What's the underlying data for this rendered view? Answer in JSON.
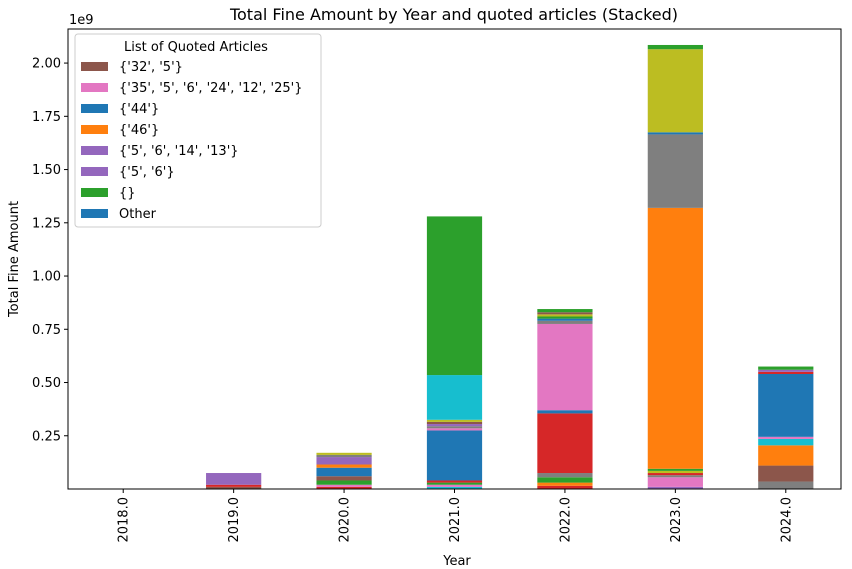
{
  "chart_data": {
    "type": "bar",
    "stacked": true,
    "title": "Total Fine Amount by Year and quoted articles (Stacked)",
    "xlabel": "Year",
    "ylabel": "Total Fine Amount",
    "y_scale_label": "1e9",
    "ylim": [
      0,
      2.16
    ],
    "y_ticks": [
      0.25,
      0.5,
      0.75,
      1.0,
      1.25,
      1.5,
      1.75,
      2.0
    ],
    "y_tick_labels": [
      "0.25",
      "0.50",
      "0.75",
      "1.00",
      "1.25",
      "1.50",
      "1.75",
      "2.00"
    ],
    "categories": [
      "2018.0",
      "2019.0",
      "2020.0",
      "2021.0",
      "2022.0",
      "2023.0",
      "2024.0"
    ],
    "legend": {
      "title": "List of Quoted Articles",
      "placement": "top-left",
      "entries": [
        {
          "label": "{'32', '5'}",
          "color": "#8c564b"
        },
        {
          "label": "{'35', '5', '6', '24', '12', '25'}",
          "color": "#e377c2"
        },
        {
          "label": "{'44'}",
          "color": "#1f77b4"
        },
        {
          "label": "{'46'}",
          "color": "#ff7f0e"
        },
        {
          "label": "{'5', '6', '14', '13'}",
          "color": "#9467bd"
        },
        {
          "label": "{'5', '6'}",
          "color": "#9467bd"
        },
        {
          "label": "{}",
          "color": "#2ca02c"
        },
        {
          "label": "Other",
          "color": "#1f77b4"
        }
      ]
    },
    "stacks": [
      {
        "year": "2018.0",
        "segments": []
      },
      {
        "year": "2019.0",
        "segments": [
          {
            "value": 0.01,
            "color": "#8c564b"
          },
          {
            "value": 0.01,
            "color": "#d62728"
          },
          {
            "value": 0.055,
            "color": "#9467bd"
          }
        ]
      },
      {
        "year": "2020.0",
        "segments": [
          {
            "value": 0.01,
            "color": "#d62728"
          },
          {
            "value": 0.01,
            "color": "#e377c2"
          },
          {
            "value": 0.02,
            "color": "#2ca02c"
          },
          {
            "value": 0.02,
            "color": "#8c564b"
          },
          {
            "value": 0.04,
            "color": "#1f77b4"
          },
          {
            "value": 0.015,
            "color": "#ff7f0e"
          },
          {
            "value": 0.035,
            "color": "#9467bd"
          },
          {
            "value": 0.01,
            "color": "#7f7f7f"
          },
          {
            "value": 0.01,
            "color": "#bcbd22"
          }
        ]
      },
      {
        "year": "2021.0",
        "segments": [
          {
            "value": 0.01,
            "color": "#17becf"
          },
          {
            "value": 0.01,
            "color": "#e377c2"
          },
          {
            "value": 0.01,
            "color": "#2ca02c"
          },
          {
            "value": 0.01,
            "color": "#d62728"
          },
          {
            "value": 0.235,
            "color": "#1f77b4"
          },
          {
            "value": 0.01,
            "color": "#e377c2"
          },
          {
            "value": 0.01,
            "color": "#7f7f7f"
          },
          {
            "value": 0.01,
            "color": "#9467bd"
          },
          {
            "value": 0.01,
            "color": "#8c564b"
          },
          {
            "value": 0.01,
            "color": "#bcbd22"
          },
          {
            "value": 0.21,
            "color": "#17becf"
          },
          {
            "value": 0.745,
            "color": "#2ca02c"
          }
        ]
      },
      {
        "year": "2022.0",
        "segments": [
          {
            "value": 0.015,
            "color": "#d62728"
          },
          {
            "value": 0.015,
            "color": "#ff7f0e"
          },
          {
            "value": 0.025,
            "color": "#2ca02c"
          },
          {
            "value": 0.02,
            "color": "#7f7f7f"
          },
          {
            "value": 0.28,
            "color": "#d62728"
          },
          {
            "value": 0.015,
            "color": "#1f77b4"
          },
          {
            "value": 0.405,
            "color": "#e377c2"
          },
          {
            "value": 0.015,
            "color": "#7f7f7f"
          },
          {
            "value": 0.01,
            "color": "#1f77b4"
          },
          {
            "value": 0.01,
            "color": "#2ca02c"
          },
          {
            "value": 0.01,
            "color": "#bcbd22"
          },
          {
            "value": 0.01,
            "color": "#8c564b"
          },
          {
            "value": 0.015,
            "color": "#2ca02c"
          }
        ]
      },
      {
        "year": "2023.0",
        "segments": [
          {
            "value": 0.01,
            "color": "#9467bd"
          },
          {
            "value": 0.045,
            "color": "#e377c2"
          },
          {
            "value": 0.01,
            "color": "#7f7f7f"
          },
          {
            "value": 0.01,
            "color": "#d62728"
          },
          {
            "value": 0.01,
            "color": "#bcbd22"
          },
          {
            "value": 0.01,
            "color": "#2ca02c"
          },
          {
            "value": 1.225,
            "color": "#ff7f0e"
          },
          {
            "value": 0.345,
            "color": "#7f7f7f"
          },
          {
            "value": 0.01,
            "color": "#1f77b4"
          },
          {
            "value": 0.39,
            "color": "#bcbd22"
          },
          {
            "value": 0.02,
            "color": "#2ca02c"
          }
        ]
      },
      {
        "year": "2024.0",
        "segments": [
          {
            "value": 0.035,
            "color": "#7f7f7f"
          },
          {
            "value": 0.075,
            "color": "#8c564b"
          },
          {
            "value": 0.095,
            "color": "#ff7f0e"
          },
          {
            "value": 0.03,
            "color": "#17becf"
          },
          {
            "value": 0.01,
            "color": "#e377c2"
          },
          {
            "value": 0.295,
            "color": "#1f77b4"
          },
          {
            "value": 0.01,
            "color": "#d62728"
          },
          {
            "value": 0.01,
            "color": "#9467bd"
          },
          {
            "value": 0.015,
            "color": "#2ca02c"
          }
        ]
      }
    ]
  }
}
